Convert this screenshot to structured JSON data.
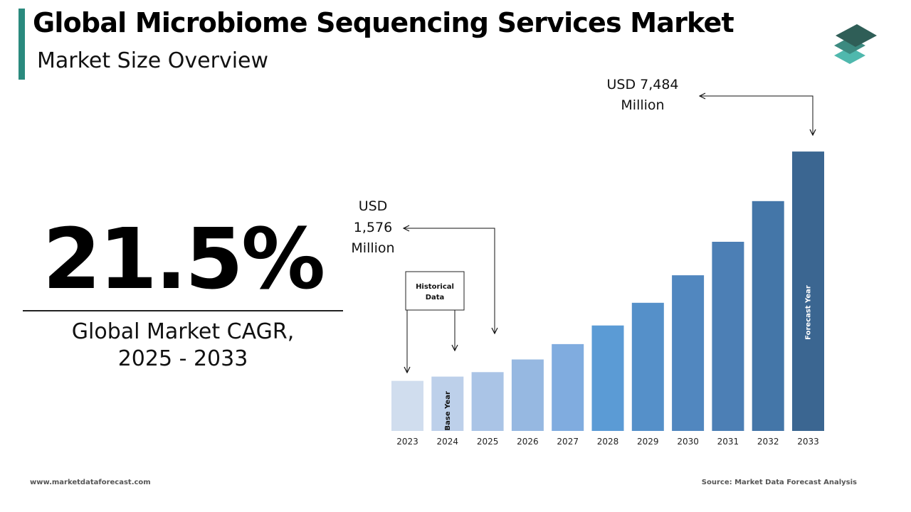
{
  "header": {
    "title": "Global Microbiome Sequencing Services Market",
    "subtitle": "Market Size Overview",
    "accent_color": "#2a8a7e"
  },
  "logo": {
    "icon": "layered-stack-icon",
    "colors": [
      "#2f5e57",
      "#3c8a80",
      "#4fb8ad"
    ]
  },
  "cagr": {
    "value": "21.5%",
    "label_line1": "Global Market CAGR,",
    "label_line2": "2025 - 2033"
  },
  "chart_data": {
    "type": "bar",
    "categories": [
      "2023",
      "2024",
      "2025",
      "2026",
      "2027",
      "2028",
      "2029",
      "2030",
      "2031",
      "2032",
      "2033"
    ],
    "values": [
      1340,
      1455,
      1576,
      1914,
      2325,
      2825,
      3432,
      4170,
      5067,
      6156,
      7484
    ],
    "ylim": [
      0,
      8000
    ],
    "colors": [
      "#d0ddee",
      "#bdd0ea",
      "#aac4e6",
      "#96b8e1",
      "#80acdf",
      "#5b9bd5",
      "#5590c9",
      "#5187bf",
      "#4c7fb5",
      "#4476a8",
      "#3b6691"
    ],
    "bar_labels": {
      "2024": "Base Year",
      "2033": "Forecast Year"
    },
    "callouts": [
      {
        "year": "2025",
        "line1": "USD",
        "line2": "1,576",
        "line3": "Million"
      },
      {
        "year": "2033",
        "line1": "USD 7,484",
        "line2": "Million"
      }
    ],
    "historical_box": {
      "line1": "Historical",
      "line2": "Data"
    }
  },
  "footer": {
    "website": "www.marketdataforecast.com",
    "source": "Source: Market Data Forecast Analysis"
  }
}
